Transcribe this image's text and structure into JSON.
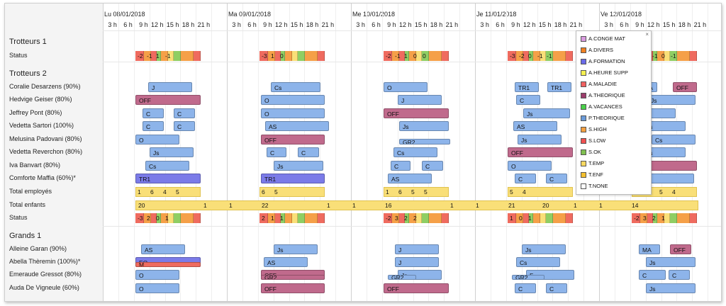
{
  "days": [
    {
      "label": "Lu 08/01/2018",
      "hours": [
        "3 h",
        "6 h",
        "9 h",
        "12 h",
        "15 h",
        "18 h",
        "21 h"
      ]
    },
    {
      "label": "Ma 09/01/2018",
      "hours": [
        "3 h",
        "6 h",
        "9 h",
        "12 h",
        "15 h",
        "18 h",
        "21 h"
      ]
    },
    {
      "label": "Me 10/01/2018",
      "hours": [
        "3 h",
        "6 h",
        "9 h",
        "12 h",
        "15 h",
        "18 h",
        "21 h"
      ]
    },
    {
      "label": "Je 11/01/2018",
      "hours": [
        "3 h",
        "6 h",
        "9 h",
        "12 h",
        "15 h",
        "18 h",
        "21 h"
      ]
    },
    {
      "label": "Ve 12/01/2018",
      "hours": [
        "3 h",
        "6 h",
        "9 h",
        "12 h",
        "15 h",
        "18 h",
        "21 h"
      ]
    }
  ],
  "groups": {
    "trotteurs1": "Trotteurs 1",
    "trotteurs2": "Trotteurs 2",
    "grands1": "Grands 1"
  },
  "rows": {
    "status1": "Status",
    "r1": "Coralie Desarzens (90%)",
    "r2": "Hedvige Geiser (80%)",
    "r3": "Jeffrey Pont (80%)",
    "r4": "Vedetta Sartori (100%)",
    "r5": "Melusina Padovani (80%)",
    "r6": "Vedetta Reverchon (80%)",
    "r7": "Iva Banvart (80%)",
    "r8": "Comforte Maffia (60%)*",
    "total_emp": "Total employés",
    "total_enf": "Total enfants",
    "status2": "Status",
    "g1": "Alleine Garan (90%)",
    "g2": "Abella Thèremin (100%)*",
    "g3": "Emeraude Gressot (80%)",
    "g4": "Auda De Vigneule (60%)"
  },
  "status1": [
    [
      "-2",
      "-1",
      "1",
      "-1"
    ],
    [
      "-3",
      "1",
      "0"
    ],
    [
      "-2",
      "-1",
      "1",
      "0",
      "0"
    ],
    [
      "-3",
      "-2",
      "0",
      "-1",
      "-1"
    ],
    [
      "-1",
      "0",
      "-1",
      "0",
      "-1"
    ]
  ],
  "status2": [
    [
      "-3",
      "2",
      "0",
      "1"
    ],
    [
      "2",
      "1",
      "1"
    ],
    [
      "-2",
      "3",
      "2",
      "2"
    ],
    [
      "1",
      "0",
      "1"
    ],
    [
      "-2",
      "3",
      "2",
      "1"
    ]
  ],
  "total_emp": [
    [
      "1",
      "6",
      "4",
      "5"
    ],
    [
      "6",
      "5"
    ],
    [
      "1",
      "6",
      "5",
      "5"
    ],
    [
      "5",
      "4"
    ],
    [
      "1",
      "6",
      "5",
      "4"
    ]
  ],
  "total_enf": [
    "20",
    "1",
    "1",
    "22",
    "1",
    "1",
    "16",
    "1",
    "1",
    "21",
    "20",
    "1",
    "1",
    "14"
  ],
  "bars": {
    "r1": [
      "J",
      "Cs",
      "O",
      "TR1",
      "TR1",
      "MA",
      "OFF"
    ],
    "r2": [
      "OFF",
      "O",
      "J",
      "C",
      "Js"
    ],
    "r3": [
      "C",
      "C",
      "O",
      "OFF",
      "Js",
      "O"
    ],
    "r4": [
      "C",
      "C",
      "AS",
      "Js",
      "AS",
      "Cs"
    ],
    "r5": [
      "O",
      "OFF",
      "GR2",
      "Js",
      "Cs",
      "F"
    ],
    "r6": [
      "Js",
      "C",
      "C",
      "Cs",
      "OFF",
      "Cs"
    ],
    "r7": [
      "Cs",
      "Js",
      "C",
      "C",
      "O",
      "OFF"
    ],
    "r8": [
      "TR1",
      "TR1",
      "AS",
      "C",
      "C",
      "J"
    ],
    "g1": [
      "AS",
      "Js",
      "J",
      "Js",
      "MA",
      "OFF"
    ],
    "g2": [
      "EQ",
      "M",
      "AS",
      "J",
      "Cs",
      "Js"
    ],
    "g3": [
      "O",
      "OFF",
      "GR2",
      "Js",
      "GR2",
      "F",
      "GR2",
      "C",
      "C"
    ],
    "g4": [
      "O",
      "OFF",
      "OFF",
      "C",
      "C",
      "Js"
    ]
  },
  "legend": [
    {
      "label": "A.CONGE MAT",
      "color": "#d99be0"
    },
    {
      "label": "A.DIVERS",
      "color": "#f08020"
    },
    {
      "label": "A.FORMATION",
      "color": "#6a6ae8"
    },
    {
      "label": "A.HEURE SUPP",
      "color": "#f5f050"
    },
    {
      "label": "A.MALADIE",
      "color": "#f06060"
    },
    {
      "label": "A.THEORIQUE",
      "color": "#9c3c6c"
    },
    {
      "label": "A.VACANCES",
      "color": "#4ad04a"
    },
    {
      "label": "P.THEORIQUE",
      "color": "#6a9ad8"
    },
    {
      "label": "S.HIGH",
      "color": "#f5a040"
    },
    {
      "label": "S.LOW",
      "color": "#f05050"
    },
    {
      "label": "S.OK",
      "color": "#80c050"
    },
    {
      "label": "T.EMP",
      "color": "#f8d860"
    },
    {
      "label": "T.ENF",
      "color": "#f4c030"
    },
    {
      "label": "T.NONE",
      "color": "#ffffff"
    }
  ],
  "legend_close": "×",
  "colors": {
    "blue": "#8db4ea",
    "offred": "#c06a8c",
    "purple": "#7b7be8",
    "green": "#8fce63",
    "red": "#ef6b5f",
    "orange": "#f5a048",
    "yellow": "#f9df78"
  }
}
